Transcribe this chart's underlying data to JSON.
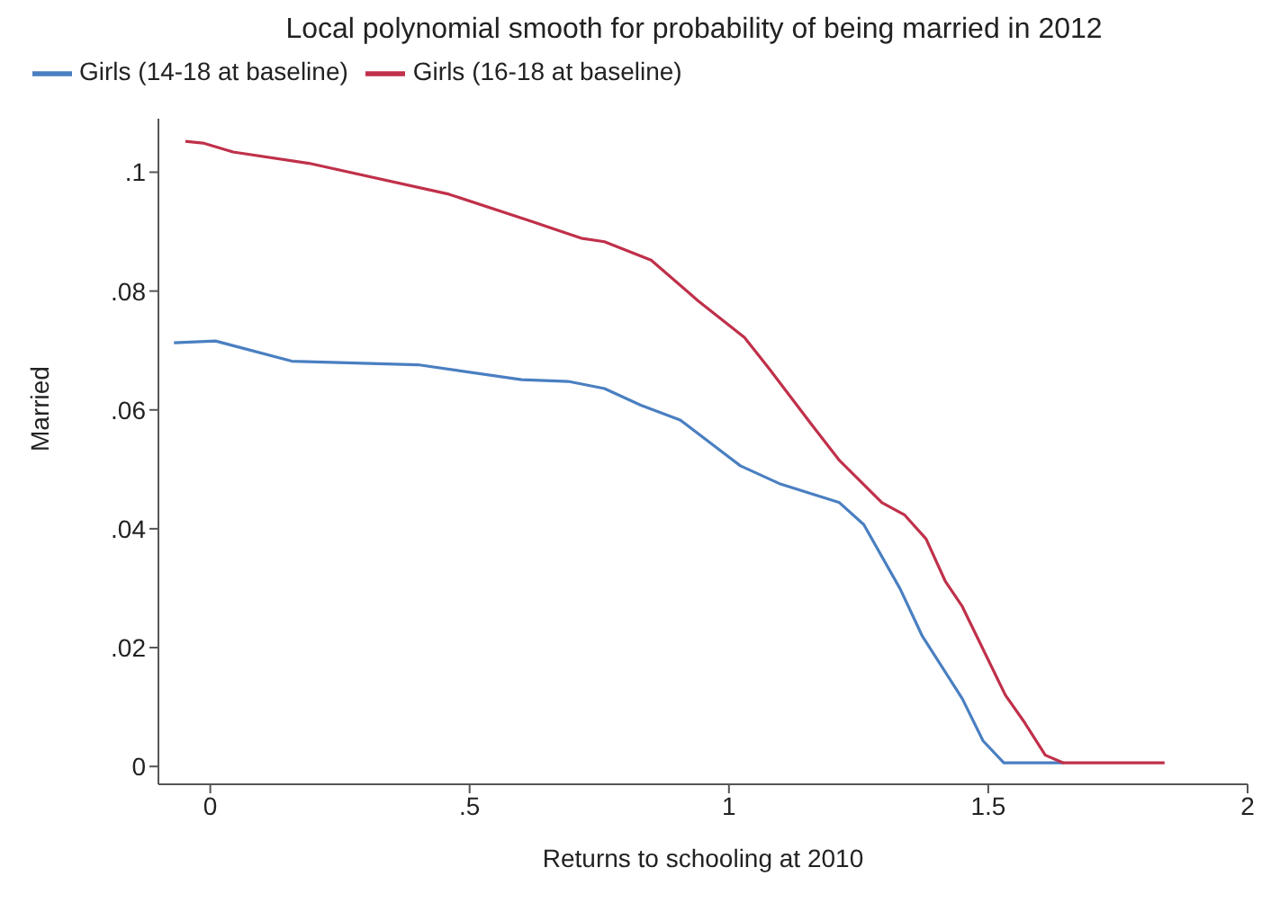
{
  "chart_data": {
    "type": "line",
    "title": "Local polynomial smooth for probability of being married in 2012",
    "xlabel": "Returns to schooling at 2010",
    "ylabel": "Married",
    "xlim": [
      -0.1,
      2
    ],
    "xticks": [
      0,
      {
        "value": 0.5,
        "label": ".5"
      },
      1,
      1.5,
      2
    ],
    "ylim": [
      -0.003,
      0.109
    ],
    "yticks": [
      0,
      {
        "value": 0.02,
        "label": ".02"
      },
      {
        "value": 0.04,
        "label": ".04"
      },
      {
        "value": 0.06,
        "label": ".06"
      },
      {
        "value": 0.08,
        "label": ".08"
      },
      {
        "value": 0.1,
        "label": ".1"
      }
    ],
    "grid": false,
    "legend": "top left",
    "marker": "none",
    "line_style": "solid",
    "series": [
      {
        "name": "Girls (14-18 at baseline)",
        "color": "#4a7fc1",
        "x": [
          -0.07,
          0.01,
          0.157,
          0.4,
          0.6,
          0.69,
          0.76,
          0.83,
          0.906,
          1.022,
          1.1,
          1.213,
          1.26,
          1.33,
          1.373,
          1.45,
          1.49,
          1.53,
          1.645
        ],
        "values": [
          0.0713,
          0.0716,
          0.0682,
          0.0676,
          0.0651,
          0.0648,
          0.0636,
          0.0608,
          0.0583,
          0.0506,
          0.0475,
          0.0444,
          0.0407,
          0.0299,
          0.0219,
          0.0114,
          0.0043,
          0.0006,
          0.0006
        ]
      },
      {
        "name": "Girls (16-18 at baseline)",
        "color": "#c0304a",
        "x": [
          -0.048,
          -0.014,
          0.044,
          0.19,
          0.46,
          0.62,
          0.715,
          0.76,
          0.85,
          0.94,
          1.03,
          1.077,
          1.158,
          1.213,
          1.295,
          1.339,
          1.38,
          1.417,
          1.45,
          1.533,
          1.57,
          1.61,
          1.645,
          1.84
        ],
        "values": [
          0.1052,
          0.1049,
          0.1034,
          0.1015,
          0.0963,
          0.0917,
          0.0889,
          0.0883,
          0.0852,
          0.0784,
          0.0722,
          0.067,
          0.0577,
          0.0515,
          0.0444,
          0.0423,
          0.0383,
          0.0312,
          0.0269,
          0.012,
          0.0074,
          0.0019,
          0.0006,
          0.0006
        ]
      }
    ]
  }
}
